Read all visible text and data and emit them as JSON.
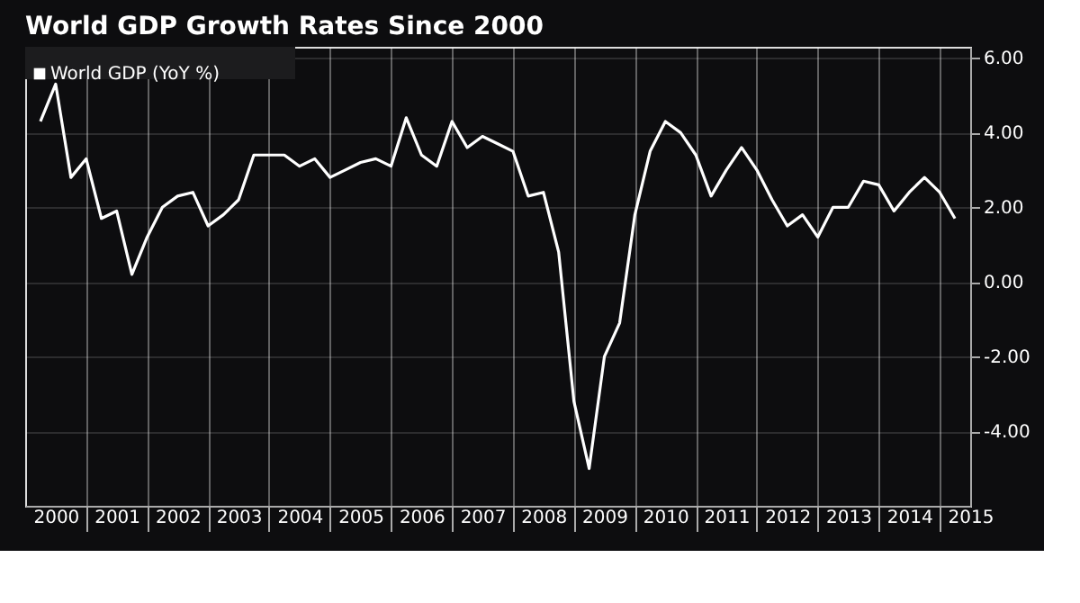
{
  "chart_data": {
    "type": "line",
    "title": "World GDP Growth Rates Since 2000",
    "x": [
      2000.25,
      2000.5,
      2000.75,
      2001,
      2001.25,
      2001.5,
      2001.75,
      2002,
      2002.25,
      2002.5,
      2002.75,
      2003,
      2003.25,
      2003.5,
      2003.75,
      2004,
      2004.25,
      2004.5,
      2004.75,
      2005,
      2005.25,
      2005.5,
      2005.75,
      2006,
      2006.25,
      2006.5,
      2006.75,
      2007,
      2007.25,
      2007.5,
      2007.75,
      2008,
      2008.25,
      2008.5,
      2008.75,
      2009,
      2009.25,
      2009.5,
      2009.75,
      2010,
      2010.25,
      2010.5,
      2010.75,
      2011,
      2011.25,
      2011.5,
      2011.75,
      2012,
      2012.25,
      2012.5,
      2012.75,
      2013,
      2013.25,
      2013.5,
      2013.75,
      2014,
      2014.25,
      2014.5,
      2014.75,
      2015,
      2015.25
    ],
    "series": [
      {
        "name": "World GDP (YoY %)",
        "color": "#ffffff",
        "values": [
          4.3,
          5.3,
          2.8,
          3.3,
          1.7,
          1.9,
          0.2,
          1.2,
          2.0,
          2.3,
          2.4,
          1.5,
          1.8,
          2.2,
          3.4,
          3.4,
          3.4,
          3.1,
          3.3,
          2.8,
          3.0,
          3.2,
          3.3,
          3.1,
          4.4,
          3.4,
          3.1,
          4.3,
          3.6,
          3.9,
          3.7,
          3.5,
          2.3,
          2.4,
          0.8,
          -3.2,
          -5.0,
          -2.0,
          -1.1,
          1.8,
          3.5,
          4.3,
          4.0,
          3.4,
          2.3,
          3.0,
          3.6,
          3.0,
          2.2,
          1.5,
          1.8,
          1.2,
          2.0,
          2.0,
          2.7,
          2.6,
          1.9,
          2.4,
          2.8,
          2.4,
          1.7
        ]
      }
    ],
    "xlim": [
      2000,
      2015.5
    ],
    "xticks": [
      {
        "value": 2000.5,
        "label": "2000"
      },
      {
        "value": 2001,
        "label": null
      },
      {
        "value": 2001.5,
        "label": "2001"
      },
      {
        "value": 2002,
        "label": null
      },
      {
        "value": 2002.5,
        "label": "2002"
      },
      {
        "value": 2003,
        "label": null
      },
      {
        "value": 2003.5,
        "label": "2003"
      },
      {
        "value": 2004,
        "label": null
      },
      {
        "value": 2004.5,
        "label": "2004"
      },
      {
        "value": 2005,
        "label": null
      },
      {
        "value": 2005.5,
        "label": "2005"
      },
      {
        "value": 2006,
        "label": null
      },
      {
        "value": 2006.5,
        "label": "2006"
      },
      {
        "value": 2007,
        "label": null
      },
      {
        "value": 2007.5,
        "label": "2007"
      },
      {
        "value": 2008,
        "label": null
      },
      {
        "value": 2008.5,
        "label": "2008"
      },
      {
        "value": 2009,
        "label": null
      },
      {
        "value": 2009.5,
        "label": "2009"
      },
      {
        "value": 2010,
        "label": null
      },
      {
        "value": 2010.5,
        "label": "2010"
      },
      {
        "value": 2011,
        "label": null
      },
      {
        "value": 2011.5,
        "label": "2011"
      },
      {
        "value": 2012,
        "label": null
      },
      {
        "value": 2012.5,
        "label": "2012"
      },
      {
        "value": 2013,
        "label": null
      },
      {
        "value": 2013.5,
        "label": "2013"
      },
      {
        "value": 2014,
        "label": null
      },
      {
        "value": 2014.5,
        "label": "2014"
      },
      {
        "value": 2015,
        "label": null
      },
      {
        "value": 2015.5,
        "label": "2015"
      }
    ],
    "ylim": [
      -6,
      6.3
    ],
    "yticks": [
      {
        "value": -4,
        "label": "-4.00"
      },
      {
        "value": -2,
        "label": "-2.00"
      },
      {
        "value": 0,
        "label": "0.00"
      },
      {
        "value": 2,
        "label": "2.00"
      },
      {
        "value": 4,
        "label": "4.00"
      },
      {
        "value": 6,
        "label": "6.00"
      }
    ],
    "grid": true,
    "legend": "top left",
    "marker": "none",
    "line_style": "solid"
  }
}
